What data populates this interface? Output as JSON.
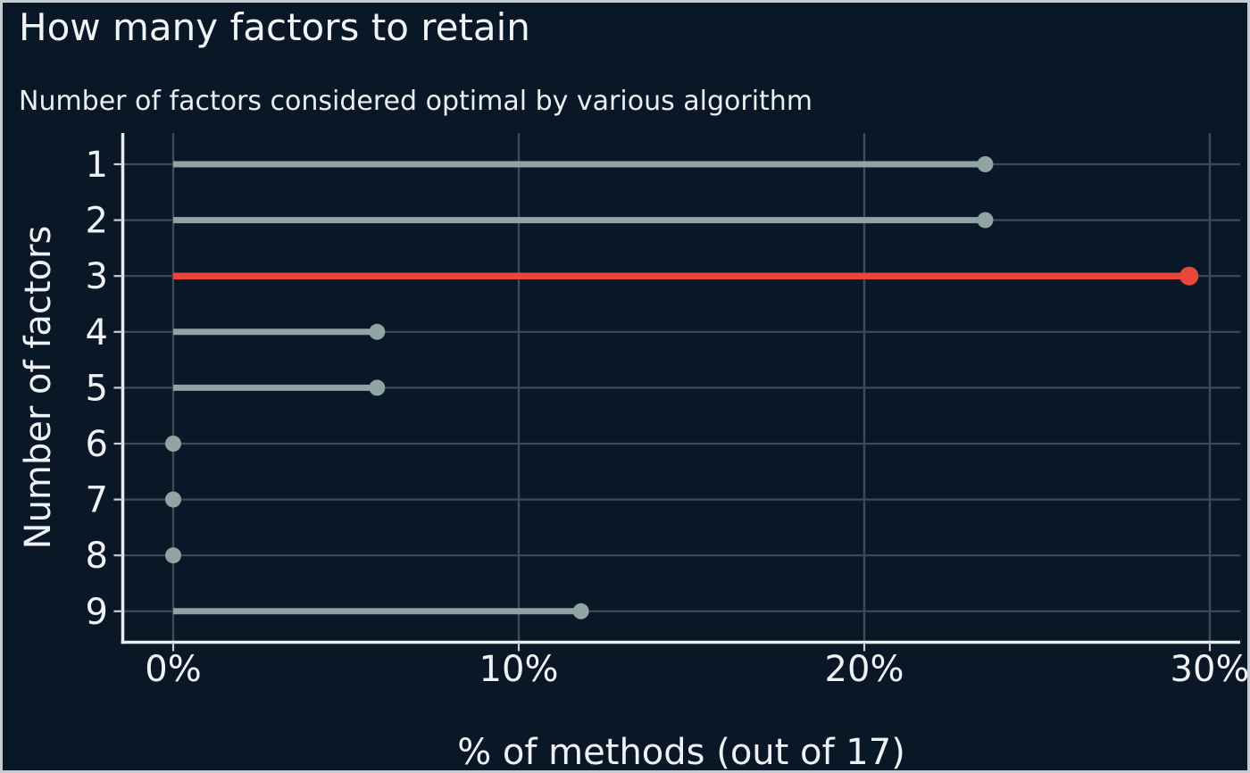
{
  "chart_data": {
    "type": "lollipop",
    "orientation": "horizontal",
    "title": "How many factors to retain",
    "subtitle": "Number of factors considered optimal by various algorithm",
    "xlabel": "% of methods (out of 17)",
    "ylabel": "Number of factors",
    "categories": [
      "1",
      "2",
      "3",
      "4",
      "5",
      "6",
      "7",
      "8",
      "9"
    ],
    "values": [
      23.5,
      23.5,
      29.4,
      5.9,
      5.9,
      0,
      0,
      0,
      11.8
    ],
    "highlight_index": 2,
    "highlight_category": "3",
    "x_ticks": [
      {
        "value": 0,
        "label": "0%"
      },
      {
        "value": 10,
        "label": "10%"
      },
      {
        "value": 20,
        "label": "20%"
      },
      {
        "value": 30,
        "label": "30%"
      }
    ],
    "xlim": [
      -1.5,
      31
    ],
    "grid": true,
    "legend": "none",
    "colors": {
      "background": "#0a1726",
      "stem": "#90a4a3",
      "highlight": "#e8463a",
      "grid": "#3d4a57",
      "spine": "#e9edef",
      "tick": "#c8d0d6",
      "text": "#eef2f4",
      "border": "#c6ccd2"
    }
  }
}
